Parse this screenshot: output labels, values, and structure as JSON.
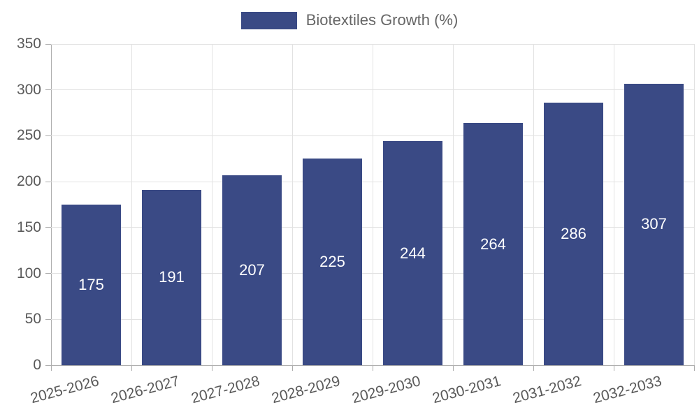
{
  "legend": {
    "label": "Biotextiles Growth (%)"
  },
  "chart_data": {
    "type": "bar",
    "title": "",
    "series_name": "Biotextiles Growth (%)",
    "categories": [
      "2025-2026",
      "2026-2027",
      "2027-2028",
      "2028-2029",
      "2029-2030",
      "2030-2031",
      "2031-2032",
      "2032-2033"
    ],
    "values": [
      175,
      191,
      207,
      225,
      244,
      264,
      286,
      307
    ],
    "xlabel": "",
    "ylabel": "",
    "ylim": [
      0,
      350
    ],
    "yticks": [
      0,
      50,
      100,
      150,
      200,
      250,
      300,
      350
    ],
    "grid": true,
    "vertical_grid": true,
    "legend_position": "top",
    "bar_value_labels": "inside-center",
    "x_tick_rotation_deg": -15
  },
  "colors": {
    "background": "#ffffff",
    "bar": "#3a4a85",
    "bar_label": "#ffffff",
    "grid": "#e2e2e2",
    "axis": "#adadad",
    "tick_text": "#595959",
    "legend_text": "#666666"
  }
}
